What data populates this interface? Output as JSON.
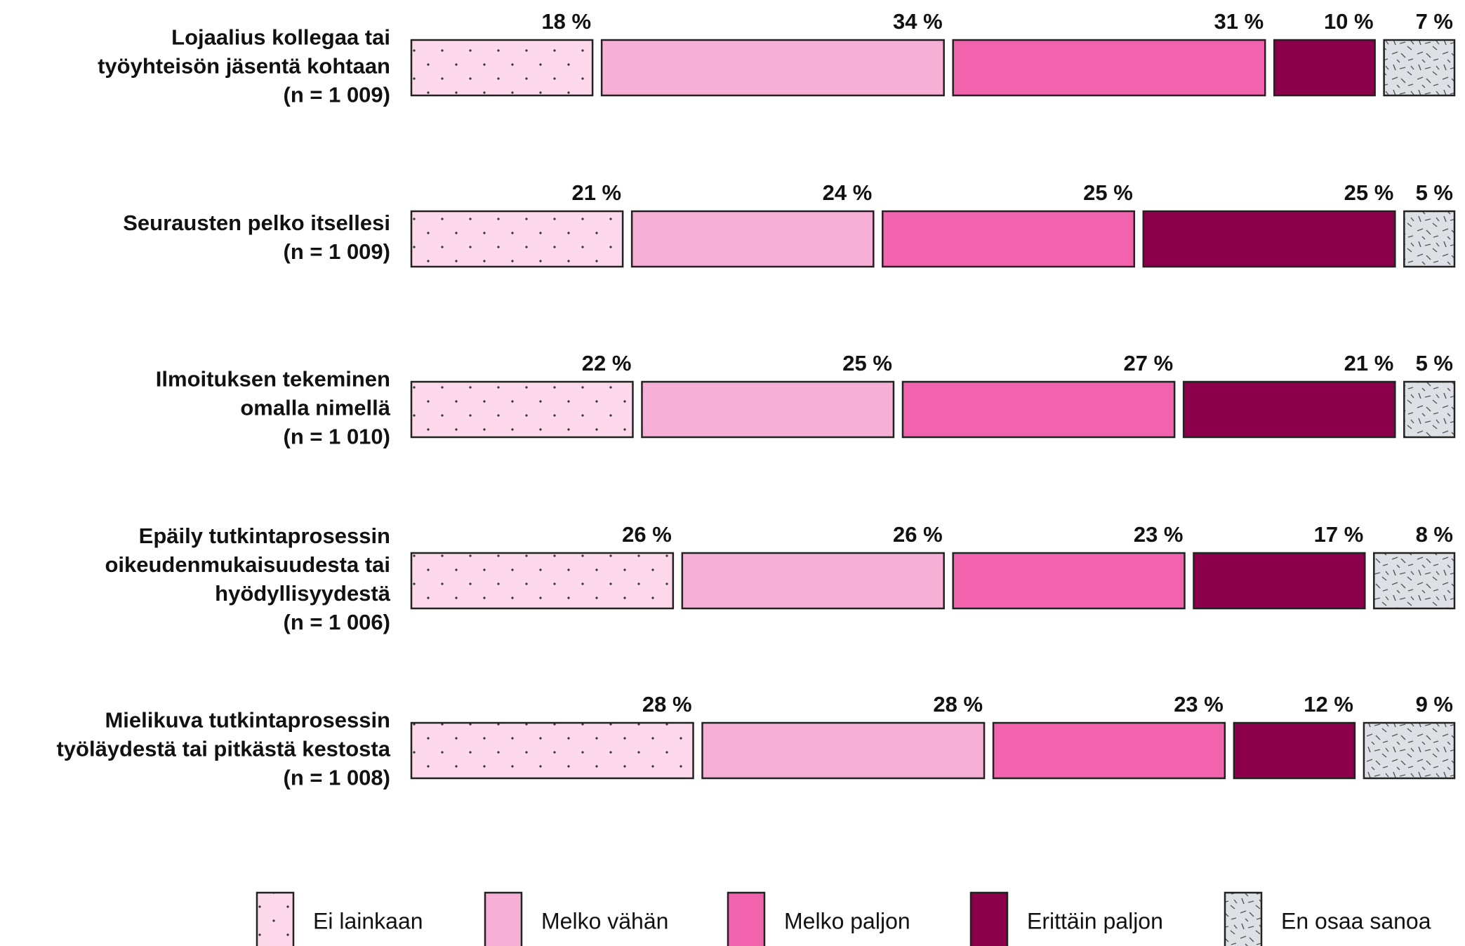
{
  "chart_data": {
    "type": "stacked-bar-horizontal",
    "categories": [
      [
        "Lojaalius kollegaa tai",
        "työyhteisön jäsentä kohtaan",
        "(n = 1 009)"
      ],
      [
        "Seurausten pelko itsellesi",
        "(n = 1 009)"
      ],
      [
        "Ilmoituksen tekeminen",
        "omalla nimellä",
        "(n = 1 010)"
      ],
      [
        "Epäily tutkintaprosessin",
        "oikeudenmukaisuudesta tai",
        "hyödyllisyydestä",
        "(n = 1 006)"
      ],
      [
        "Mielikuva tutkintaprosessin",
        "työläydestä tai pitkästä kestosta",
        "(n = 1 008)"
      ]
    ],
    "series": [
      {
        "name": "Ei lainkaan",
        "color": "#fdd7ea",
        "pattern": "dots",
        "values": [
          18,
          21,
          22,
          26,
          28
        ],
        "value_labels": [
          "18 %",
          "21 %",
          "22 %",
          "26 %",
          "28 %"
        ]
      },
      {
        "name": "Melko vähän",
        "color": "#f7b0d5",
        "values": [
          34,
          24,
          25,
          26,
          28
        ],
        "value_labels": [
          "34 %",
          "24 %",
          "25 %",
          "26 %",
          "28 %"
        ]
      },
      {
        "name": "Melko paljon",
        "color": "#f263ae",
        "values": [
          31,
          25,
          27,
          23,
          23
        ],
        "value_labels": [
          "31 %",
          "25 %",
          "27 %",
          "23 %",
          "23 %"
        ]
      },
      {
        "name": "Erittäin paljon",
        "color": "#8c004b",
        "values": [
          10,
          25,
          21,
          17,
          12
        ],
        "value_labels": [
          "10 %",
          "25 %",
          "21 %",
          "17 %",
          "12 %"
        ]
      },
      {
        "name": "En osaa sanoa",
        "color": "#dde1e5",
        "pattern": "hatch",
        "values": [
          7,
          5,
          5,
          8,
          9
        ],
        "value_labels": [
          "7 %",
          "5 %",
          "5 %",
          "8 %",
          "9 %"
        ]
      }
    ],
    "legend": "bottom"
  }
}
